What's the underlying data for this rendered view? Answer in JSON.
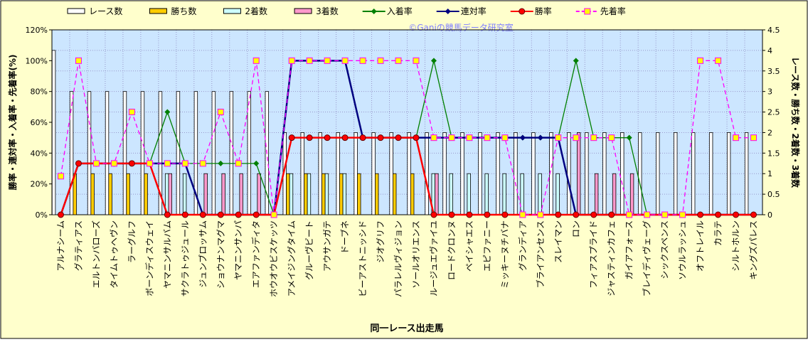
{
  "chart_data": {
    "type": "combo",
    "watermark": "©Ganiの競馬データ研究室",
    "xlabel": "同一レース出走馬",
    "ylabel": "勝率・連対率・入着率・先着率(%)",
    "y2label": "レース数・勝ち数・2着数・3着数",
    "categories": [
      "アルナシーム",
      "グラティアス",
      "エルトンバローズ",
      "タイムトゥヘヴン",
      "ラーグルフ",
      "ボーンディスウェイ",
      "ヤマニンサルバム",
      "サクラトゥジュール",
      "ジュンブロッサム",
      "ショウナンマグマ",
      "ヤマニンサンパ",
      "エアファンディタ",
      "ホウオウビスケッツ",
      "アメイジングタイム",
      "グルーヴビート",
      "アウサンガテ",
      "ドーブネ",
      "ビーアストニッシド",
      "ジオグリフ",
      "パラレルヴィジョン",
      "ソールオリエンス",
      "ルージュエヴァイユ",
      "ロードクロンヌ",
      "ペイシャエス",
      "エピファニー",
      "ミッキーヌチバナ",
      "グランディア",
      "ブライアンセンス",
      "スレイマン",
      "ロン",
      "フィアスプライド",
      "ジャスティンカフェ",
      "ガイアフォース",
      "ブレイディヴェーグ",
      "シックスペンス",
      "ソウルラッシュ",
      "オフトレイル",
      "カラテ",
      "シルトホルン",
      "キングズパレス"
    ],
    "ylim": [
      0,
      120
    ],
    "yticks": [
      {
        "value": 0,
        "label": "0%"
      },
      {
        "value": 20,
        "label": "20%"
      },
      {
        "value": 40,
        "label": "40%"
      },
      {
        "value": 60,
        "label": "60%"
      },
      {
        "value": 80,
        "label": "80%"
      },
      {
        "value": 100,
        "label": "100%"
      },
      {
        "value": 120,
        "label": "120%"
      }
    ],
    "y2lim": [
      0,
      4.5
    ],
    "y2ticks": [
      0,
      0.5,
      1,
      1.5,
      2,
      2.5,
      3,
      3.5,
      4,
      4.5
    ],
    "grid": true,
    "series": [
      {
        "name": "レース数",
        "kind": "bar",
        "axis": "y2",
        "color": "#ffffff",
        "values": [
          4,
          3,
          3,
          3,
          3,
          3,
          3,
          3,
          3,
          3,
          3,
          3,
          3,
          2,
          2,
          2,
          2,
          2,
          2,
          2,
          2,
          2,
          2,
          2,
          2,
          2,
          2,
          2,
          2,
          2,
          2,
          2,
          2,
          2,
          2,
          2,
          2,
          2,
          2,
          2
        ]
      },
      {
        "name": "勝ち数",
        "kind": "bar",
        "axis": "y2",
        "color": "#ffcc00",
        "values": [
          0,
          1,
          1,
          1,
          1,
          1,
          0,
          0,
          0,
          0,
          0,
          0,
          0,
          1,
          1,
          1,
          1,
          1,
          1,
          1,
          1,
          0,
          0,
          0,
          0,
          0,
          0,
          0,
          0,
          0,
          0,
          0,
          0,
          0,
          0,
          0,
          0,
          0,
          0,
          0
        ]
      },
      {
        "name": "2着数",
        "kind": "bar",
        "axis": "y2",
        "color": "#ccffff",
        "values": [
          0,
          0,
          0,
          0,
          0,
          0,
          1,
          1,
          0,
          0,
          0,
          0,
          0,
          1,
          1,
          1,
          1,
          0,
          0,
          0,
          0,
          1,
          1,
          1,
          1,
          1,
          1,
          1,
          1,
          0,
          0,
          0,
          0,
          0,
          0,
          0,
          0,
          0,
          0,
          0
        ]
      },
      {
        "name": "3着数",
        "kind": "bar",
        "axis": "y2",
        "color": "#ff99cc",
        "values": [
          0,
          0,
          0,
          0,
          0,
          0,
          1,
          0,
          1,
          1,
          1,
          1,
          0,
          0,
          0,
          0,
          0,
          0,
          0,
          0,
          0,
          1,
          0,
          0,
          0,
          0,
          0,
          0,
          0,
          2,
          1,
          1,
          1,
          0,
          0,
          0,
          0,
          0,
          0,
          0
        ]
      },
      {
        "name": "入着率",
        "kind": "line",
        "marker": "diamond",
        "color": "#008000",
        "values": [
          0,
          33.3,
          33.3,
          33.3,
          33.3,
          33.3,
          66.7,
          33.3,
          33.3,
          33.3,
          33.3,
          33.3,
          0,
          100,
          100,
          100,
          100,
          50,
          50,
          50,
          50,
          100,
          50,
          50,
          50,
          50,
          50,
          50,
          50,
          100,
          50,
          50,
          50,
          0,
          0,
          0,
          0,
          0,
          0,
          0
        ]
      },
      {
        "name": "連対率",
        "kind": "line",
        "marker": "diamond",
        "color": "#000080",
        "values": [
          0,
          33.3,
          33.3,
          33.3,
          33.3,
          33.3,
          33.3,
          33.3,
          0,
          0,
          0,
          0,
          0,
          100,
          100,
          100,
          100,
          50,
          50,
          50,
          50,
          50,
          50,
          50,
          50,
          50,
          50,
          50,
          50,
          0,
          0,
          0,
          0,
          0,
          0,
          0,
          0,
          0,
          0,
          0
        ]
      },
      {
        "name": "勝率",
        "kind": "line",
        "marker": "circle",
        "color": "#ff0000",
        "values": [
          0,
          33.3,
          33.3,
          33.3,
          33.3,
          33.3,
          0,
          0,
          0,
          0,
          0,
          0,
          0,
          50,
          50,
          50,
          50,
          50,
          50,
          50,
          50,
          0,
          0,
          0,
          0,
          0,
          0,
          0,
          0,
          0,
          0,
          0,
          0,
          0,
          0,
          0,
          0,
          0,
          0,
          0
        ]
      },
      {
        "name": "先着率",
        "kind": "line",
        "marker": "square",
        "dashed": true,
        "color": "#ff00ff",
        "values": [
          25,
          100,
          33.3,
          33.3,
          66.7,
          33.3,
          33.3,
          33.3,
          33.3,
          66.7,
          33.3,
          100,
          0,
          100,
          100,
          100,
          100,
          100,
          100,
          100,
          100,
          50,
          50,
          50,
          50,
          50,
          0,
          0,
          50,
          50,
          50,
          50,
          0,
          0,
          0,
          0,
          100,
          100,
          50,
          50
        ]
      }
    ]
  }
}
